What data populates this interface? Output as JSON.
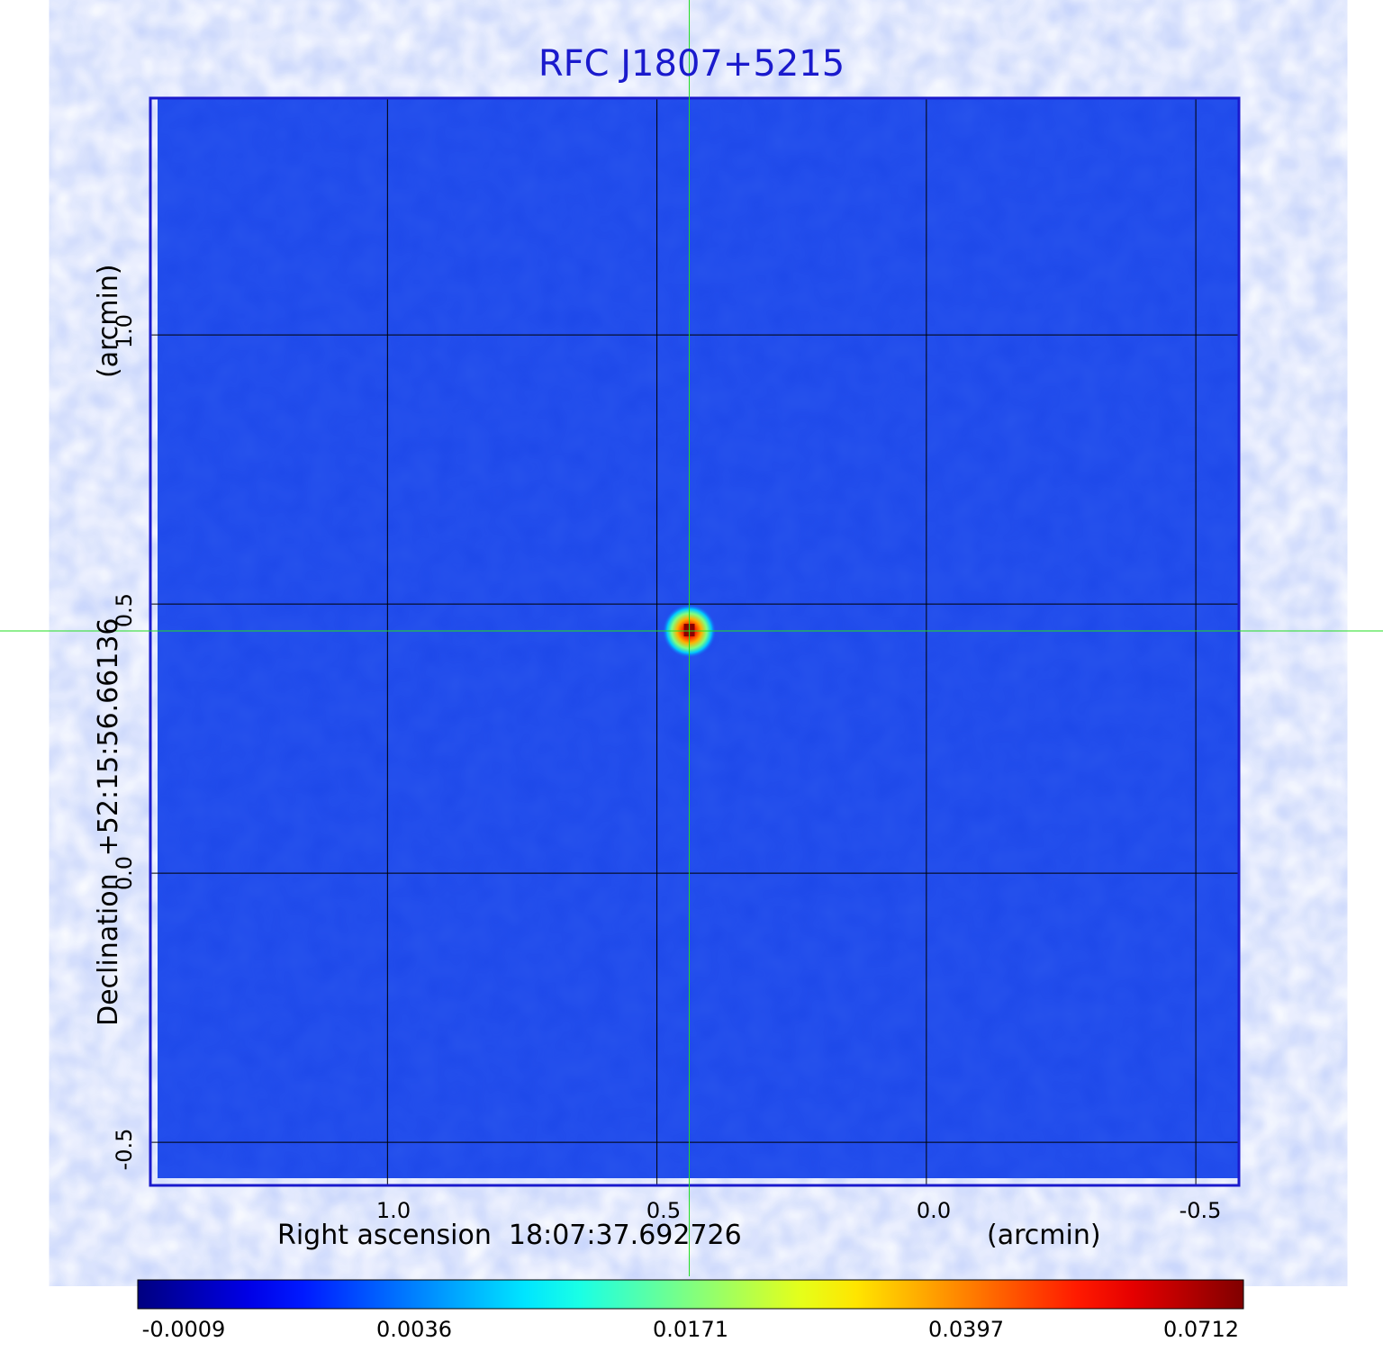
{
  "chart_data": {
    "type": "heatmap",
    "title": "RFC J1807+5215",
    "xlabel": "Right ascension  18:07:37.692726",
    "xunit": "(arcmin)",
    "ylabel": "Declination  +52:15:56.66136",
    "yunit": "(arcmin)",
    "xlim": [
      1.44,
      -0.58
    ],
    "ylim": [
      -0.58,
      1.44
    ],
    "x_ticks": [
      "1.0",
      "0.5",
      "0.0",
      "-0.5"
    ],
    "x_tick_values": [
      1.0,
      0.5,
      0.0,
      -0.5
    ],
    "y_ticks": [
      "-0.5",
      "0.0",
      "0.5",
      "1.0"
    ],
    "y_tick_values": [
      -0.5,
      0.0,
      0.5,
      1.0
    ],
    "grid": true,
    "colormap": "jet",
    "colorbar_ticks": [
      "-0.0009",
      "0.0036",
      "0.0171",
      "0.0397",
      "0.0712"
    ],
    "source": {
      "x": 0.44,
      "y": 0.45,
      "peak": 0.0712
    },
    "background_value": -0.0004,
    "crosshair": {
      "x": 0.44,
      "y": 0.45,
      "color": "#22dd22"
    },
    "frame_color": "#1a1acc"
  }
}
